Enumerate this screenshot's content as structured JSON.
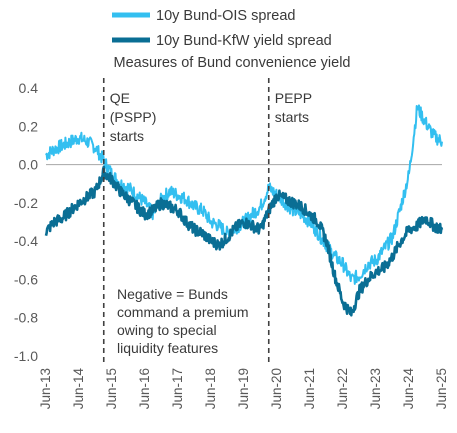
{
  "chart_data": {
    "type": "line",
    "title": "Measures of Bund convenience yield",
    "xlabel": "",
    "ylabel": "",
    "ylim": [
      -1.0,
      0.4
    ],
    "y_ticks": [
      "0.4",
      "0.2",
      "0.0",
      "-0.2",
      "-0.4",
      "-0.6",
      "-0.8",
      "-1.0"
    ],
    "x_ticks": [
      "Jun-13",
      "Jun-14",
      "Jun-15",
      "Jun-16",
      "Jun-17",
      "Jun-18",
      "Jun-19",
      "Jun-20",
      "Jun-21",
      "Jun-22",
      "Jun-23",
      "Jun-24",
      "Jun-25"
    ],
    "legend_position": "top",
    "series": [
      {
        "name": "10y Bund-OIS spread",
        "color": "#33bff0",
        "points": [
          [
            "2013-06",
            0.05
          ],
          [
            "2013-09",
            0.08
          ],
          [
            "2013-12",
            0.1
          ],
          [
            "2014-03",
            0.12
          ],
          [
            "2014-06",
            0.14
          ],
          [
            "2014-09",
            0.12
          ],
          [
            "2014-12",
            0.09
          ],
          [
            "2015-03",
            0.02
          ],
          [
            "2015-06",
            -0.05
          ],
          [
            "2015-09",
            -0.1
          ],
          [
            "2015-12",
            -0.12
          ],
          [
            "2016-03",
            -0.16
          ],
          [
            "2016-06",
            -0.2
          ],
          [
            "2016-09",
            -0.26
          ],
          [
            "2016-12",
            -0.18
          ],
          [
            "2017-03",
            -0.14
          ],
          [
            "2017-06",
            -0.16
          ],
          [
            "2017-09",
            -0.18
          ],
          [
            "2017-12",
            -0.22
          ],
          [
            "2018-03",
            -0.24
          ],
          [
            "2018-06",
            -0.3
          ],
          [
            "2018-09",
            -0.32
          ],
          [
            "2018-12",
            -0.36
          ],
          [
            "2019-03",
            -0.33
          ],
          [
            "2019-06",
            -0.3
          ],
          [
            "2019-09",
            -0.26
          ],
          [
            "2019-12",
            -0.22
          ],
          [
            "2020-03",
            -0.12
          ],
          [
            "2020-06",
            -0.16
          ],
          [
            "2020-09",
            -0.2
          ],
          [
            "2020-12",
            -0.24
          ],
          [
            "2021-03",
            -0.26
          ],
          [
            "2021-06",
            -0.3
          ],
          [
            "2021-09",
            -0.36
          ],
          [
            "2021-12",
            -0.42
          ],
          [
            "2022-03",
            -0.48
          ],
          [
            "2022-06",
            -0.52
          ],
          [
            "2022-09",
            -0.6
          ],
          [
            "2022-12",
            -0.58
          ],
          [
            "2023-03",
            -0.52
          ],
          [
            "2023-06",
            -0.5
          ],
          [
            "2023-09",
            -0.44
          ],
          [
            "2023-12",
            -0.38
          ],
          [
            "2024-03",
            -0.22
          ],
          [
            "2024-06",
            -0.05
          ],
          [
            "2024-09",
            0.3
          ],
          [
            "2024-12",
            0.22
          ],
          [
            "2025-03",
            0.15
          ],
          [
            "2025-06",
            0.12
          ]
        ]
      },
      {
        "name": "10y Bund-KfW yield spread",
        "color": "#0a6e94",
        "points": [
          [
            "2013-06",
            -0.35
          ],
          [
            "2013-09",
            -0.3
          ],
          [
            "2013-12",
            -0.28
          ],
          [
            "2014-03",
            -0.24
          ],
          [
            "2014-06",
            -0.2
          ],
          [
            "2014-09",
            -0.17
          ],
          [
            "2014-12",
            -0.14
          ],
          [
            "2015-03",
            -0.04
          ],
          [
            "2015-06",
            -0.08
          ],
          [
            "2015-09",
            -0.14
          ],
          [
            "2015-12",
            -0.18
          ],
          [
            "2016-03",
            -0.22
          ],
          [
            "2016-06",
            -0.26
          ],
          [
            "2016-09",
            -0.24
          ],
          [
            "2016-12",
            -0.2
          ],
          [
            "2017-03",
            -0.22
          ],
          [
            "2017-06",
            -0.24
          ],
          [
            "2017-09",
            -0.3
          ],
          [
            "2017-12",
            -0.34
          ],
          [
            "2018-03",
            -0.36
          ],
          [
            "2018-06",
            -0.4
          ],
          [
            "2018-09",
            -0.42
          ],
          [
            "2018-12",
            -0.38
          ],
          [
            "2019-03",
            -0.33
          ],
          [
            "2019-06",
            -0.3
          ],
          [
            "2019-09",
            -0.32
          ],
          [
            "2019-12",
            -0.34
          ],
          [
            "2020-03",
            -0.24
          ],
          [
            "2020-06",
            -0.16
          ],
          [
            "2020-09",
            -0.18
          ],
          [
            "2020-12",
            -0.2
          ],
          [
            "2021-03",
            -0.22
          ],
          [
            "2021-06",
            -0.26
          ],
          [
            "2021-09",
            -0.3
          ],
          [
            "2021-12",
            -0.4
          ],
          [
            "2022-03",
            -0.58
          ],
          [
            "2022-06",
            -0.72
          ],
          [
            "2022-09",
            -0.78
          ],
          [
            "2022-12",
            -0.66
          ],
          [
            "2023-03",
            -0.6
          ],
          [
            "2023-06",
            -0.56
          ],
          [
            "2023-09",
            -0.54
          ],
          [
            "2023-12",
            -0.48
          ],
          [
            "2024-03",
            -0.4
          ],
          [
            "2024-06",
            -0.34
          ],
          [
            "2024-09",
            -0.32
          ],
          [
            "2024-12",
            -0.28
          ],
          [
            "2025-03",
            -0.32
          ],
          [
            "2025-06",
            -0.34
          ]
        ]
      }
    ],
    "vlines": [
      {
        "x": "2015-03",
        "label_lines": [
          "QE",
          "(PSPP)",
          "starts"
        ]
      },
      {
        "x": "2020-03",
        "label_lines": [
          "PEPP",
          "starts"
        ]
      }
    ],
    "note_lines": [
      "Negative = Bunds",
      "command a premium",
      "owing to special",
      "liquidity features"
    ]
  }
}
